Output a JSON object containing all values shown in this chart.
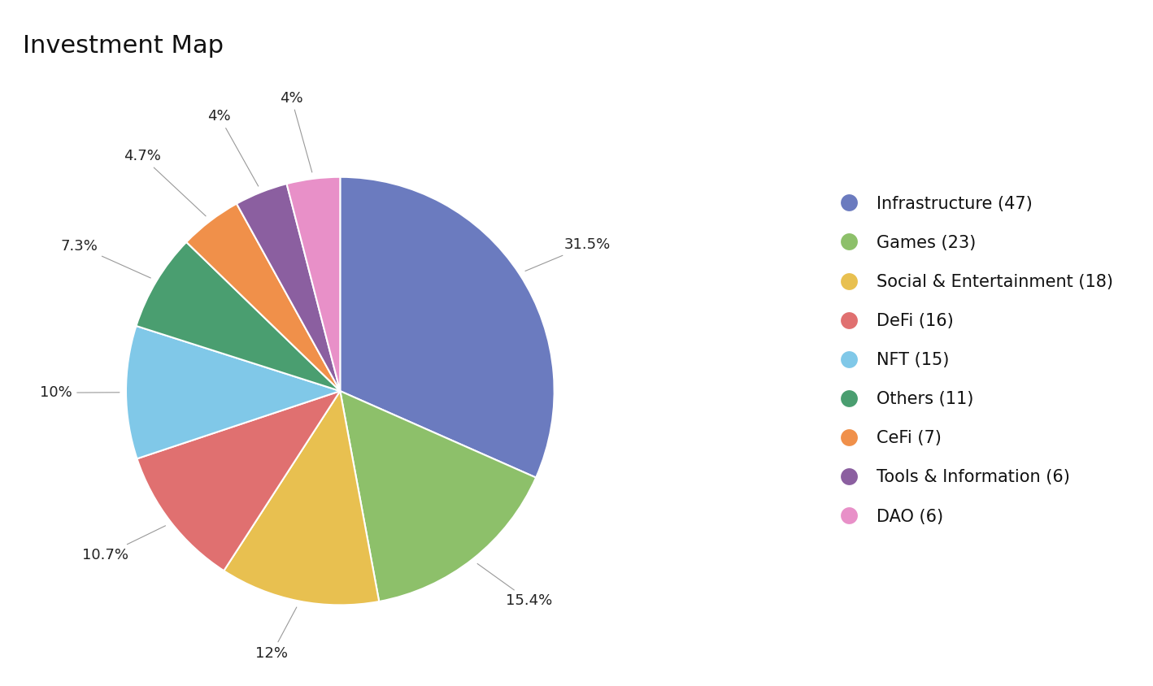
{
  "title": "Investment Map",
  "categories": [
    "Infrastructure (47)",
    "Games (23)",
    "Social & Entertainment (18)",
    "DeFi (16)",
    "NFT (15)",
    "Others (11)",
    "CeFi (7)",
    "Tools & Information (6)",
    "DAO (6)"
  ],
  "values": [
    31.5,
    15.4,
    12.0,
    10.7,
    10.0,
    7.3,
    4.7,
    4.0,
    4.0
  ],
  "pct_labels": [
    "31.5%",
    "15.4%",
    "12%",
    "10.7%",
    "10%",
    "7.3%",
    "4.7%",
    "4%",
    "4%"
  ],
  "colors": [
    "#6B7BBF",
    "#8DC06A",
    "#E8C050",
    "#E07070",
    "#80C8E8",
    "#4A9E70",
    "#F0904A",
    "#8B5FA0",
    "#E890C8"
  ],
  "background_color": "#ffffff",
  "title_fontsize": 22,
  "label_fontsize": 13,
  "legend_fontsize": 15
}
